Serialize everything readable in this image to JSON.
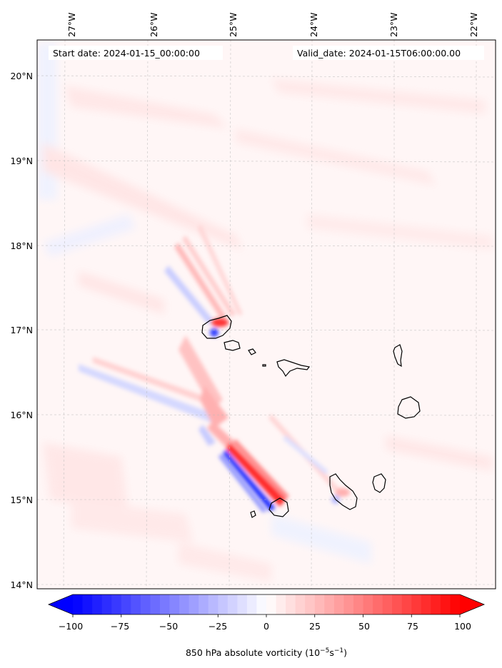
{
  "header": {
    "start_label": "Start date: 2024-01-15_00:00:00",
    "valid_label": "Valid_date: 2024-01-15T06:00:00.00"
  },
  "map": {
    "lon_ticks": [
      {
        "value": -27,
        "label": "27°W"
      },
      {
        "value": -26,
        "label": "26°W"
      },
      {
        "value": -25,
        "label": "25°W"
      },
      {
        "value": -24,
        "label": "24°W"
      },
      {
        "value": -23,
        "label": "23°W"
      },
      {
        "value": -22,
        "label": "22°W"
      }
    ],
    "lat_ticks": [
      {
        "value": 20,
        "label": "20°N"
      },
      {
        "value": 19,
        "label": "19°N"
      },
      {
        "value": 18,
        "label": "18°N"
      },
      {
        "value": 17,
        "label": "17°N"
      },
      {
        "value": 16,
        "label": "16°N"
      },
      {
        "value": 15,
        "label": "15°N"
      },
      {
        "value": 14,
        "label": "14°N"
      }
    ],
    "lon_range": [
      -27.33,
      -21.78
    ],
    "lat_range": [
      13.95,
      20.42
    ],
    "gridlines": true,
    "gridline_style": "dashed",
    "colormap": "bwr"
  },
  "colorbar": {
    "ticks": [
      {
        "value": -100,
        "label": "−100"
      },
      {
        "value": -75,
        "label": "−75"
      },
      {
        "value": -50,
        "label": "−50"
      },
      {
        "value": -25,
        "label": "−25"
      },
      {
        "value": 0,
        "label": "0"
      },
      {
        "value": 25,
        "label": "25"
      },
      {
        "value": 50,
        "label": "50"
      },
      {
        "value": 75,
        "label": "75"
      },
      {
        "value": 100,
        "label": "100"
      }
    ],
    "range": [
      -100,
      100
    ],
    "levels": 41,
    "extend": "both",
    "label_main": "850 hPa absolute vorticity (10",
    "label_sup1": "−5",
    "label_mid": "s",
    "label_sup2": "−1",
    "label_end": ")",
    "colors": {
      "negative": "#0000ff",
      "neutral": "#ffffff",
      "positive": "#ff0000"
    }
  }
}
